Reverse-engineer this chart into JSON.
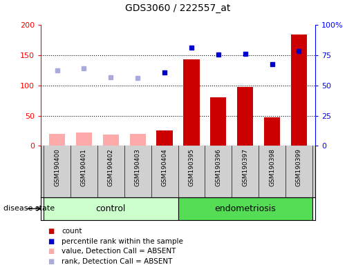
{
  "title": "GDS3060 / 222557_at",
  "samples": [
    "GSM190400",
    "GSM190401",
    "GSM190402",
    "GSM190403",
    "GSM190404",
    "GSM190395",
    "GSM190396",
    "GSM190397",
    "GSM190398",
    "GSM190399"
  ],
  "count_values": [
    20,
    22,
    18,
    20,
    25,
    143,
    80,
    97,
    47,
    184
  ],
  "count_absent": [
    true,
    true,
    true,
    true,
    false,
    false,
    false,
    false,
    false,
    false
  ],
  "percentile_values": [
    125,
    128,
    113,
    112,
    122,
    163,
    151,
    153,
    135,
    157
  ],
  "percentile_absent": [
    true,
    true,
    true,
    true,
    false,
    false,
    false,
    false,
    false,
    false
  ],
  "count_color_present": "#cc0000",
  "count_color_absent": "#ffaaaa",
  "percentile_color_present": "#0000cc",
  "percentile_color_absent": "#aaaadd",
  "ylim_left": [
    0,
    200
  ],
  "ylim_right": [
    0,
    100
  ],
  "yticks_left": [
    0,
    50,
    100,
    150,
    200
  ],
  "yticks_right": [
    0,
    25,
    50,
    75,
    100
  ],
  "ytick_labels_right": [
    "0",
    "25",
    "50",
    "75",
    "100%"
  ],
  "control_group_color": "#ccffcc",
  "endometriosis_group_color": "#55dd55",
  "disease_state_label": "disease state",
  "control_label": "control",
  "endometriosis_label": "endometriosis",
  "legend_items": [
    {
      "label": "count",
      "color": "#cc0000"
    },
    {
      "label": "percentile rank within the sample",
      "color": "#0000cc"
    },
    {
      "label": "value, Detection Call = ABSENT",
      "color": "#ffaaaa"
    },
    {
      "label": "rank, Detection Call = ABSENT",
      "color": "#aaaadd"
    }
  ],
  "n_control": 5,
  "n_endo": 5
}
